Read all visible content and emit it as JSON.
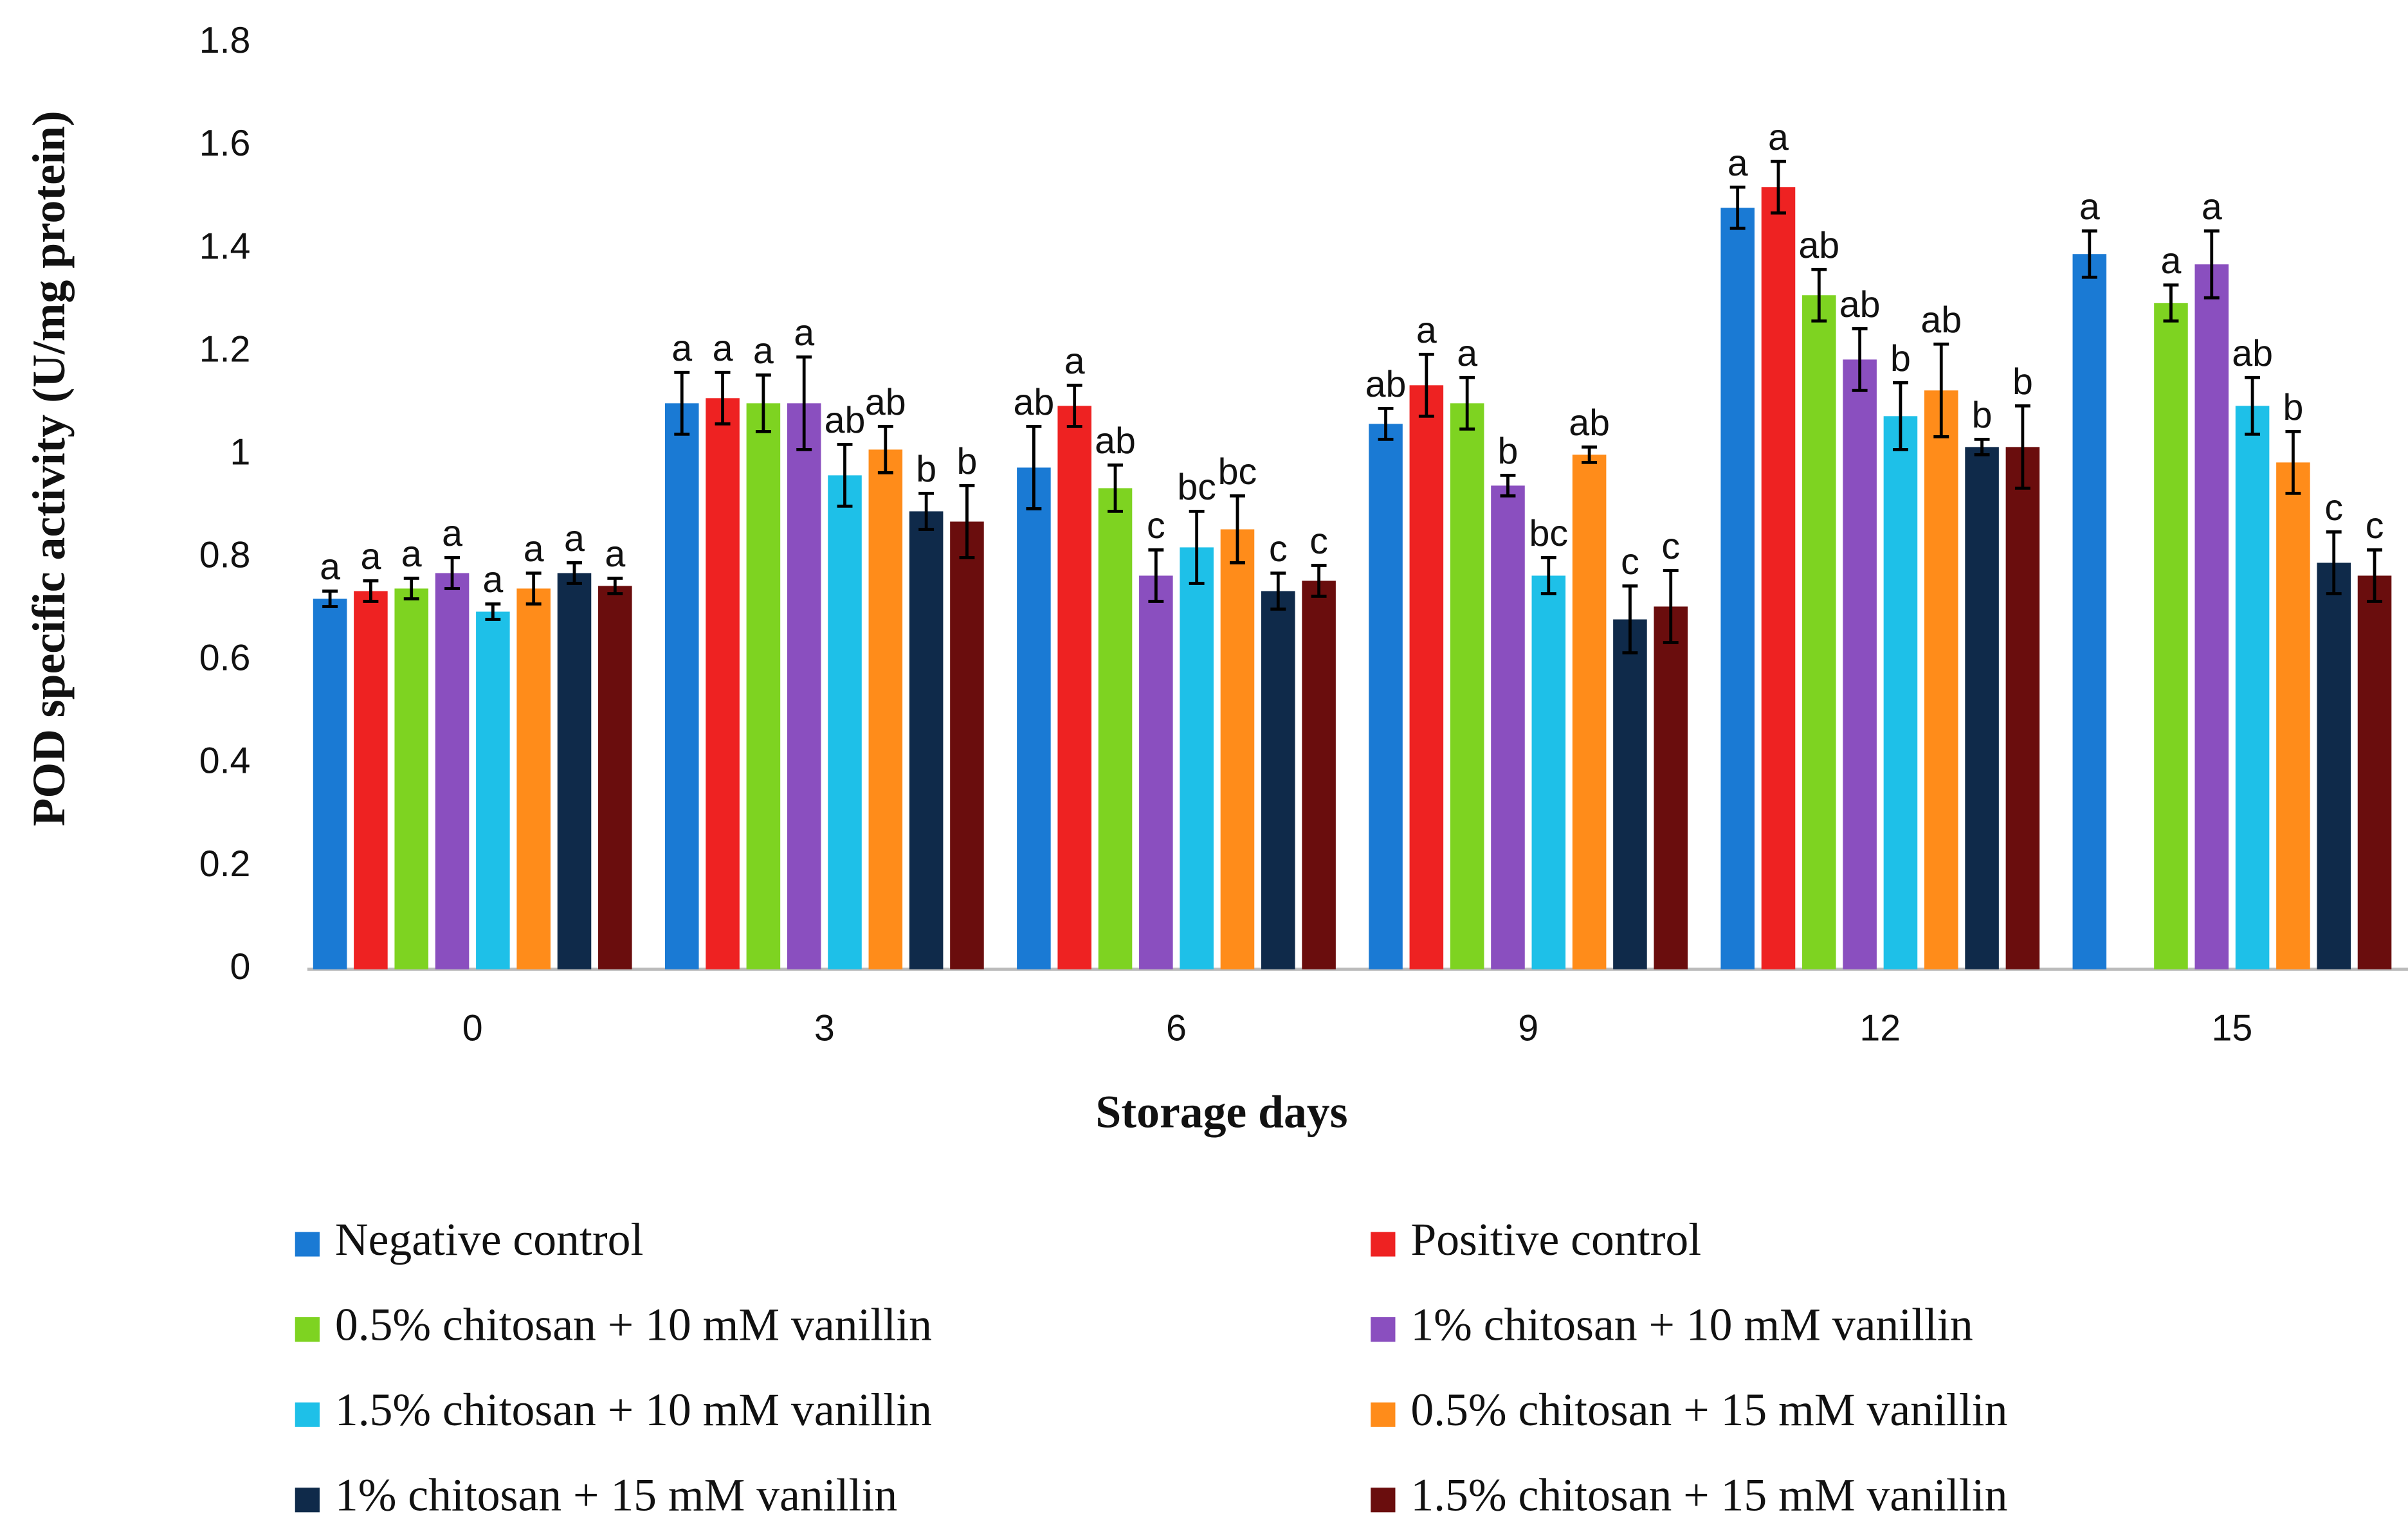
{
  "chart_data": {
    "type": "bar",
    "x_label": "Storage days",
    "y_label": "POD specific activity (U/mg protein)",
    "categories": [
      "0",
      "3",
      "6",
      "9",
      "12",
      "15"
    ],
    "ylim": [
      0,
      1.8
    ],
    "yticks": [
      0,
      0.2,
      0.4,
      0.6,
      0.8,
      1,
      1.2,
      1.4,
      1.6,
      1.8
    ],
    "grid": false,
    "legend": "bottom",
    "series": [
      {
        "name": "Negative control",
        "color": "#1a7ad4",
        "values": [
          0.72,
          1.1,
          0.975,
          1.06,
          1.48,
          1.39
        ],
        "errors": [
          0.015,
          0.06,
          0.08,
          0.03,
          0.04,
          0.045
        ],
        "letters": [
          "a",
          "a",
          "ab",
          "ab",
          "a",
          "a"
        ]
      },
      {
        "name": "Positive control",
        "color": "#ee2222",
        "values": [
          0.735,
          1.11,
          1.095,
          1.135,
          1.52,
          null
        ],
        "errors": [
          0.02,
          0.05,
          0.04,
          0.06,
          0.05,
          null
        ],
        "letters": [
          "a",
          "a",
          "a",
          "a",
          "a",
          null
        ]
      },
      {
        "name": "0.5% chitosan + 10 mM vanillin",
        "color": "#7ed321",
        "values": [
          0.74,
          1.1,
          0.935,
          1.1,
          1.31,
          1.295
        ],
        "errors": [
          0.02,
          0.055,
          0.045,
          0.05,
          0.05,
          0.035
        ],
        "letters": [
          "a",
          "a",
          "ab",
          "a",
          "ab",
          "a"
        ]
      },
      {
        "name": "1% chitosan + 10 mM vanillin",
        "color": "#8a4fbf",
        "values": [
          0.77,
          1.1,
          0.765,
          0.94,
          1.185,
          1.37
        ],
        "errors": [
          0.03,
          0.09,
          0.05,
          0.02,
          0.06,
          0.065
        ],
        "letters": [
          "a",
          "a",
          "c",
          "b",
          "ab",
          "a"
        ]
      },
      {
        "name": "1.5% chitosan + 10 mM vanillin",
        "color": "#1ec0e8",
        "values": [
          0.695,
          0.96,
          0.82,
          0.765,
          1.075,
          1.095
        ],
        "errors": [
          0.015,
          0.06,
          0.07,
          0.035,
          0.065,
          0.055
        ],
        "letters": [
          "a",
          "ab",
          "bc",
          "bc",
          "b",
          "ab"
        ]
      },
      {
        "name": "0.5% chitosan + 15 mM vanillin",
        "color": "#ff8c1a",
        "values": [
          0.74,
          1.01,
          0.855,
          1.0,
          1.125,
          0.985
        ],
        "errors": [
          0.03,
          0.045,
          0.065,
          0.015,
          0.09,
          0.06
        ],
        "letters": [
          "a",
          "ab",
          "bc",
          "ab",
          "ab",
          "b"
        ]
      },
      {
        "name": "1% chitosan + 15 mM vanillin",
        "color": "#0f2a4a",
        "values": [
          0.77,
          0.89,
          0.735,
          0.68,
          1.015,
          0.79
        ],
        "errors": [
          0.02,
          0.035,
          0.035,
          0.065,
          0.015,
          0.06
        ],
        "letters": [
          "a",
          "b",
          "c",
          "c",
          "b",
          "c"
        ]
      },
      {
        "name": "1.5% chitosan + 15 mM vanillin",
        "color": "#6a0d0d",
        "values": [
          0.745,
          0.87,
          0.755,
          0.705,
          1.015,
          0.765
        ],
        "errors": [
          0.015,
          0.07,
          0.03,
          0.07,
          0.08,
          0.05
        ],
        "letters": [
          "a",
          "b",
          "c",
          "c",
          "b",
          "c"
        ]
      }
    ]
  }
}
